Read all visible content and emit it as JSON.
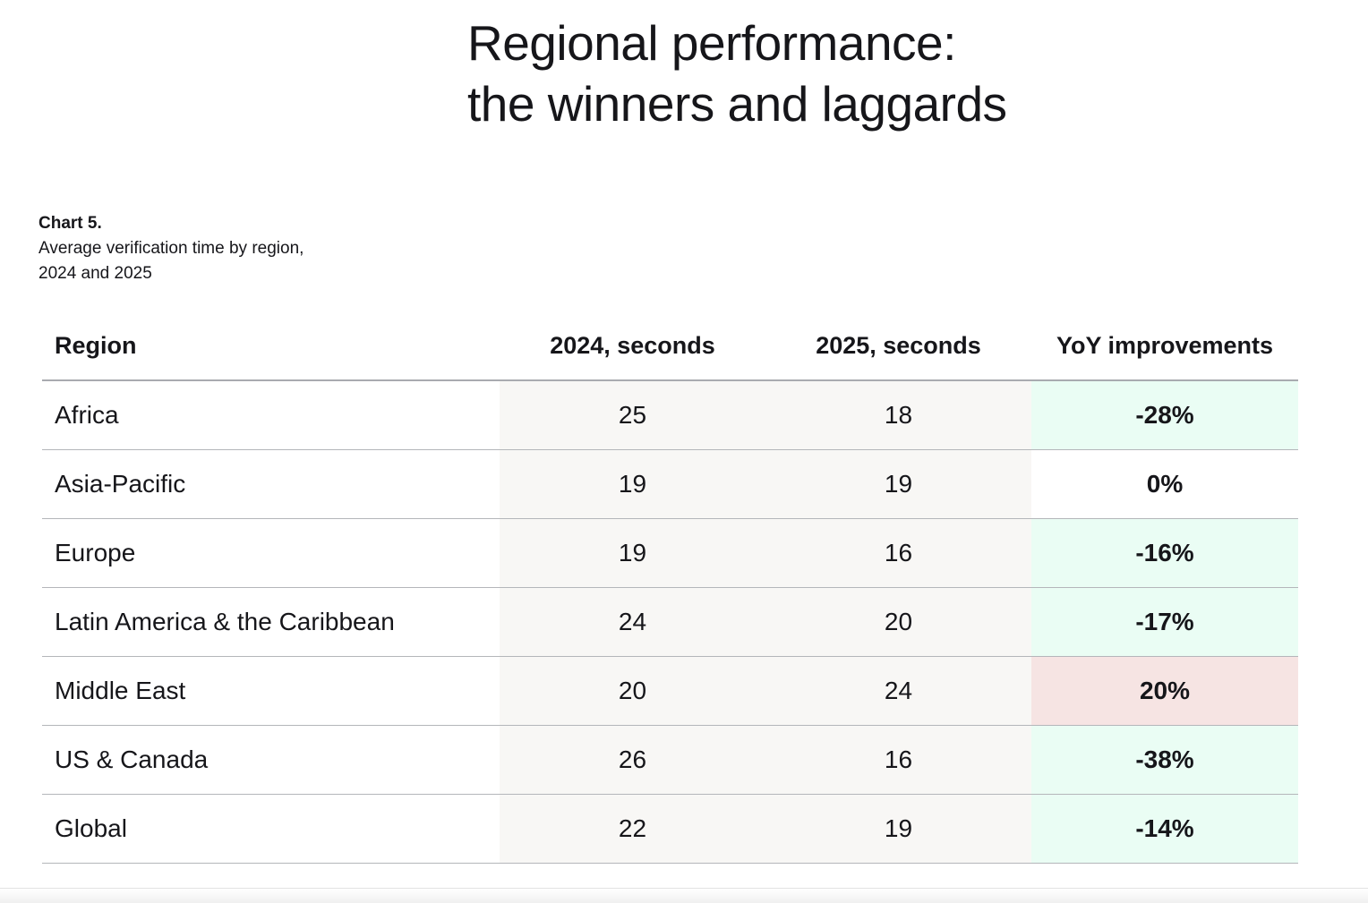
{
  "page": {
    "title_line1": "Regional performance:",
    "title_line2": "the winners and laggards"
  },
  "caption": {
    "chart_number": "Chart 5.",
    "subtitle_line1": "Average verification time by region,",
    "subtitle_line2": "2024 and 2025"
  },
  "colors": {
    "improvement_bg": "#eafdf4",
    "worsening_bg": "#f6e4e3",
    "neutral_bg": "#ffffff",
    "value_column_bg": "#f8f7f5"
  },
  "chart_data": {
    "type": "table",
    "columns": [
      "Region",
      "2024, seconds",
      "2025, seconds",
      "YoY improvements"
    ],
    "rows": [
      {
        "region": "Africa",
        "y2024": "25",
        "y2025": "18",
        "yoy": "-28%",
        "yoy_value": -28
      },
      {
        "region": "Asia-Pacific",
        "y2024": "19",
        "y2025": "19",
        "yoy": "0%",
        "yoy_value": 0
      },
      {
        "region": "Europe",
        "y2024": "19",
        "y2025": "16",
        "yoy": "-16%",
        "yoy_value": -16
      },
      {
        "region": "Latin America & the Caribbean",
        "y2024": "24",
        "y2025": "20",
        "yoy": "-17%",
        "yoy_value": -17
      },
      {
        "region": "Middle East",
        "y2024": "20",
        "y2025": "24",
        "yoy": "20%",
        "yoy_value": 20
      },
      {
        "region": "US & Canada",
        "y2024": "26",
        "y2025": "16",
        "yoy": "-38%",
        "yoy_value": -38
      },
      {
        "region": "Global",
        "y2024": "22",
        "y2025": "19",
        "yoy": "-14%",
        "yoy_value": -14
      }
    ]
  }
}
